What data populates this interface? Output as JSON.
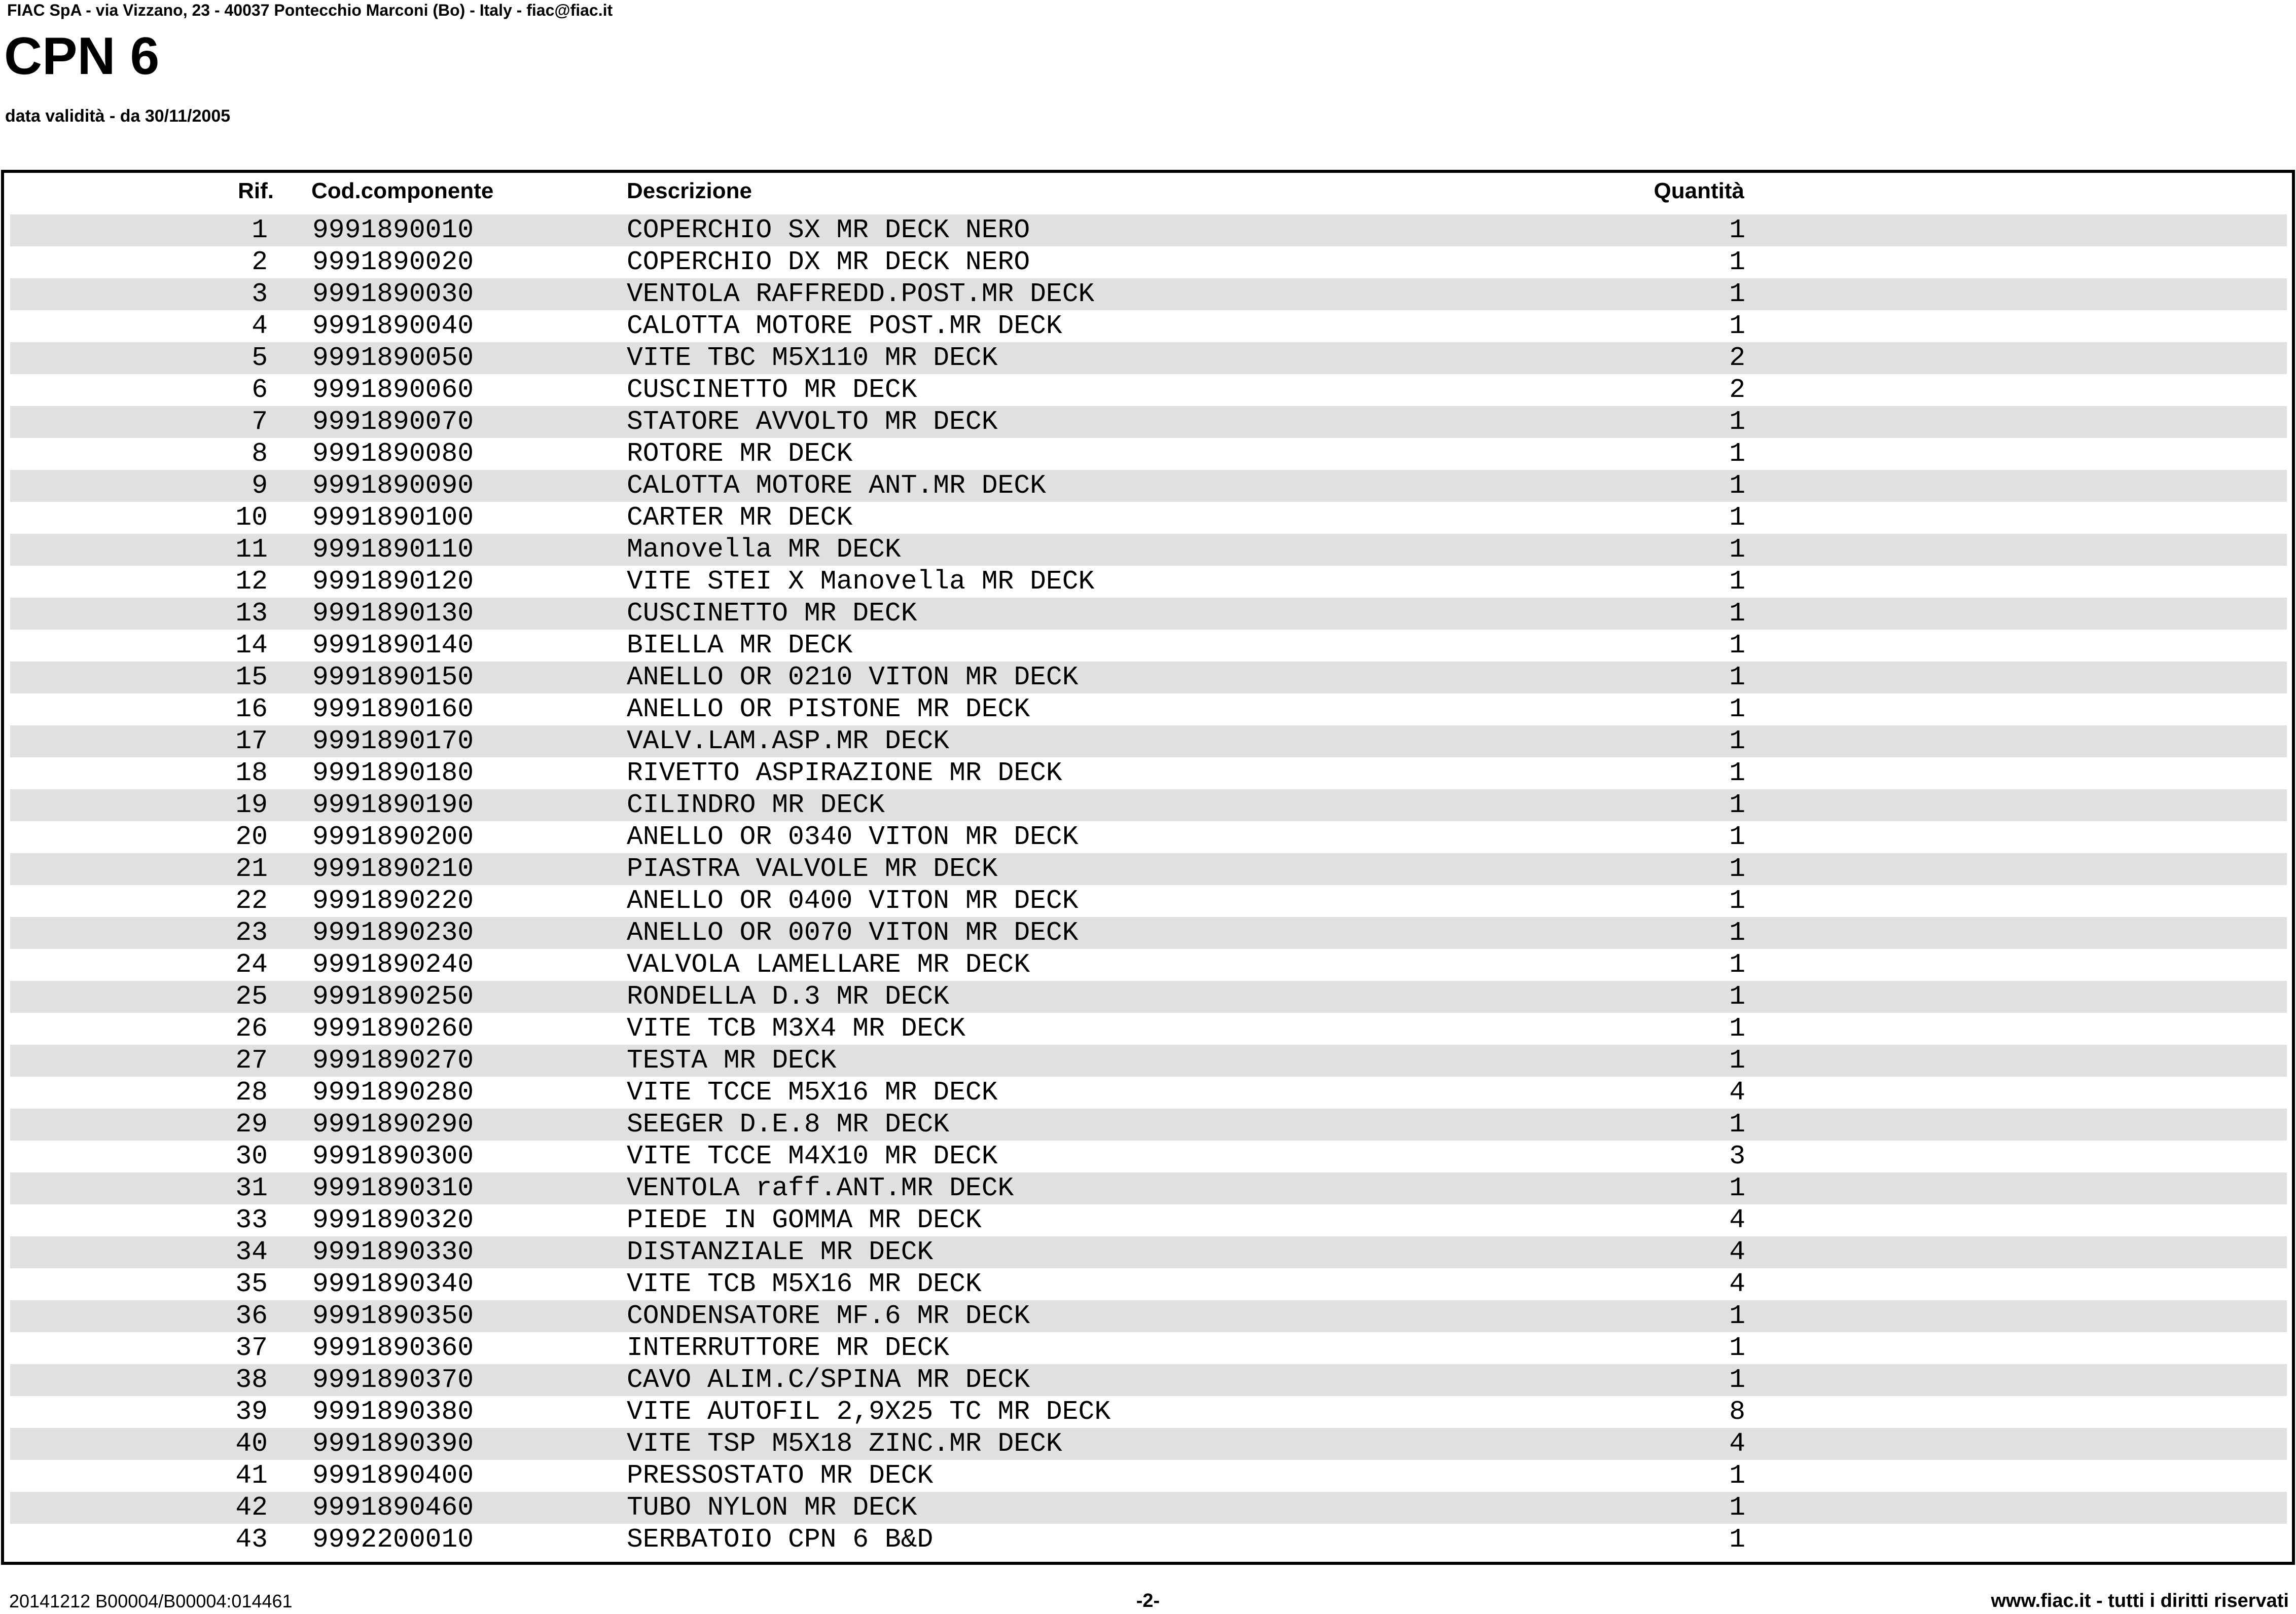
{
  "header": {
    "company_line": "FIAC SpA - via Vizzano, 23 - 40037 Pontecchio Marconi (Bo) - Italy - fiac@fiac.it",
    "title": "CPN 6",
    "validity_line": "data validità - da 30/11/2005"
  },
  "table": {
    "columns": {
      "rif": "Rif.",
      "code": "Cod.componente",
      "desc": "Descrizione",
      "qty": "Quantità"
    },
    "stripe_color": "#e0e0e0",
    "border_color": "#000000",
    "rows": [
      {
        "rif": "1",
        "code": "9991890010",
        "desc": "COPERCHIO SX MR DECK NERO",
        "qty": "1"
      },
      {
        "rif": "2",
        "code": "9991890020",
        "desc": "COPERCHIO DX MR DECK NERO",
        "qty": "1"
      },
      {
        "rif": "3",
        "code": "9991890030",
        "desc": "VENTOLA RAFFREDD.POST.MR DECK",
        "qty": "1"
      },
      {
        "rif": "4",
        "code": "9991890040",
        "desc": "CALOTTA MOTORE POST.MR DECK",
        "qty": "1"
      },
      {
        "rif": "5",
        "code": "9991890050",
        "desc": "VITE TBC M5X110 MR DECK",
        "qty": "2"
      },
      {
        "rif": "6",
        "code": "9991890060",
        "desc": "CUSCINETTO MR DECK",
        "qty": "2"
      },
      {
        "rif": "7",
        "code": "9991890070",
        "desc": "STATORE AVVOLTO MR DECK",
        "qty": "1"
      },
      {
        "rif": "8",
        "code": "9991890080",
        "desc": "ROTORE MR DECK",
        "qty": "1"
      },
      {
        "rif": "9",
        "code": "9991890090",
        "desc": "CALOTTA MOTORE ANT.MR DECK",
        "qty": "1"
      },
      {
        "rif": "10",
        "code": "9991890100",
        "desc": "CARTER MR DECK",
        "qty": "1"
      },
      {
        "rif": "11",
        "code": "9991890110",
        "desc": "Manovella MR DECK",
        "qty": "1"
      },
      {
        "rif": "12",
        "code": "9991890120",
        "desc": "VITE STEI X Manovella MR DECK",
        "qty": "1"
      },
      {
        "rif": "13",
        "code": "9991890130",
        "desc": "CUSCINETTO MR DECK",
        "qty": "1"
      },
      {
        "rif": "14",
        "code": "9991890140",
        "desc": "BIELLA MR DECK",
        "qty": "1"
      },
      {
        "rif": "15",
        "code": "9991890150",
        "desc": "ANELLO OR 0210 VITON MR DECK",
        "qty": "1"
      },
      {
        "rif": "16",
        "code": "9991890160",
        "desc": "ANELLO OR PISTONE MR DECK",
        "qty": "1"
      },
      {
        "rif": "17",
        "code": "9991890170",
        "desc": "VALV.LAM.ASP.MR DECK",
        "qty": "1"
      },
      {
        "rif": "18",
        "code": "9991890180",
        "desc": "RIVETTO ASPIRAZIONE MR DECK",
        "qty": "1"
      },
      {
        "rif": "19",
        "code": "9991890190",
        "desc": "CILINDRO MR DECK",
        "qty": "1"
      },
      {
        "rif": "20",
        "code": "9991890200",
        "desc": "ANELLO OR 0340 VITON MR DECK",
        "qty": "1"
      },
      {
        "rif": "21",
        "code": "9991890210",
        "desc": "PIASTRA VALVOLE MR DECK",
        "qty": "1"
      },
      {
        "rif": "22",
        "code": "9991890220",
        "desc": "ANELLO OR 0400 VITON MR DECK",
        "qty": "1"
      },
      {
        "rif": "23",
        "code": "9991890230",
        "desc": "ANELLO OR 0070 VITON MR DECK",
        "qty": "1"
      },
      {
        "rif": "24",
        "code": "9991890240",
        "desc": "VALVOLA LAMELLARE MR DECK",
        "qty": "1"
      },
      {
        "rif": "25",
        "code": "9991890250",
        "desc": "RONDELLA D.3 MR DECK",
        "qty": "1"
      },
      {
        "rif": "26",
        "code": "9991890260",
        "desc": "VITE TCB M3X4 MR DECK",
        "qty": "1"
      },
      {
        "rif": "27",
        "code": "9991890270",
        "desc": "TESTA MR DECK",
        "qty": "1"
      },
      {
        "rif": "28",
        "code": "9991890280",
        "desc": "VITE TCCE M5X16 MR DECK",
        "qty": "4"
      },
      {
        "rif": "29",
        "code": "9991890290",
        "desc": "SEEGER D.E.8 MR DECK",
        "qty": "1"
      },
      {
        "rif": "30",
        "code": "9991890300",
        "desc": "VITE TCCE M4X10 MR DECK",
        "qty": "3"
      },
      {
        "rif": "31",
        "code": "9991890310",
        "desc": "VENTOLA raff.ANT.MR DECK",
        "qty": "1"
      },
      {
        "rif": "33",
        "code": "9991890320",
        "desc": "PIEDE IN GOMMA MR DECK",
        "qty": "4"
      },
      {
        "rif": "34",
        "code": "9991890330",
        "desc": "DISTANZIALE MR DECK",
        "qty": "4"
      },
      {
        "rif": "35",
        "code": "9991890340",
        "desc": "VITE TCB M5X16 MR DECK",
        "qty": "4"
      },
      {
        "rif": "36",
        "code": "9991890350",
        "desc": "CONDENSATORE MF.6 MR DECK",
        "qty": "1"
      },
      {
        "rif": "37",
        "code": "9991890360",
        "desc": "INTERRUTTORE MR DECK",
        "qty": "1"
      },
      {
        "rif": "38",
        "code": "9991890370",
        "desc": "CAVO ALIM.C/SPINA MR DECK",
        "qty": "1"
      },
      {
        "rif": "39",
        "code": "9991890380",
        "desc": "VITE AUTOFIL 2,9X25 TC MR DECK",
        "qty": "8"
      },
      {
        "rif": "40",
        "code": "9991890390",
        "desc": "VITE TSP M5X18 ZINC.MR DECK",
        "qty": "4"
      },
      {
        "rif": "41",
        "code": "9991890400",
        "desc": "PRESSOSTATO MR DECK",
        "qty": "1"
      },
      {
        "rif": "42",
        "code": "9991890460",
        "desc": "TUBO NYLON MR DECK",
        "qty": "1"
      },
      {
        "rif": "43",
        "code": "9992200010",
        "desc": "SERBATOIO CPN 6 B&D",
        "qty": "1"
      }
    ]
  },
  "footer": {
    "doc_id": "20141212 B00004/B00004:014461",
    "page_number": "-2-",
    "copyright": "www.fiac.it - tutti i diritti riservati"
  }
}
